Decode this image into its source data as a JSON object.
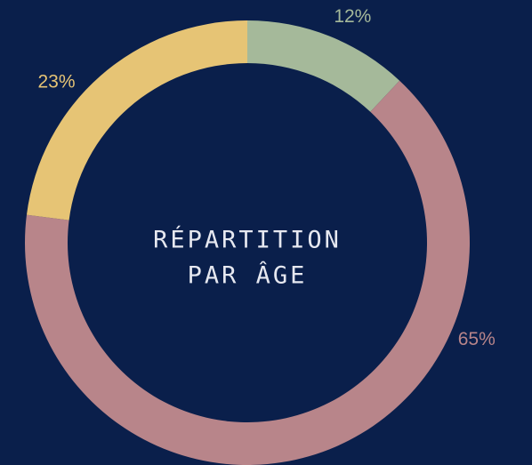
{
  "chart_data": {
    "type": "donut",
    "title": [
      "RÉPARTITION",
      "PAR ÂGE"
    ],
    "categories": [
      null,
      null,
      null
    ],
    "values": [
      12,
      65,
      23
    ],
    "value_labels": [
      "12%",
      "65%",
      "23%"
    ],
    "colors": [
      "#a5b99a",
      "#b8858a",
      "#e6c475"
    ]
  }
}
